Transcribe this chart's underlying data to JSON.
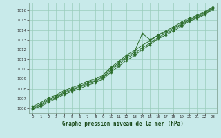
{
  "title": "Graphe pression niveau de la mer (hPa)",
  "bg_color": "#c8eaea",
  "grid_color": "#99ccbb",
  "line_color": "#2d6e2d",
  "marker_color": "#2d6e2d",
  "xlim": [
    -0.5,
    23.5
  ],
  "ylim": [
    1005.5,
    1016.8
  ],
  "yticks": [
    1006,
    1007,
    1008,
    1009,
    1010,
    1011,
    1012,
    1013,
    1014,
    1015,
    1016
  ],
  "xticks": [
    0,
    1,
    2,
    3,
    4,
    5,
    6,
    7,
    8,
    9,
    10,
    11,
    12,
    13,
    14,
    15,
    16,
    17,
    18,
    19,
    20,
    21,
    22,
    23
  ],
  "hours": [
    0,
    1,
    2,
    3,
    4,
    5,
    6,
    7,
    8,
    9,
    10,
    11,
    12,
    13,
    14,
    15,
    16,
    17,
    18,
    19,
    20,
    21,
    22,
    23
  ],
  "line1": [
    1005.9,
    1006.2,
    1006.6,
    1007.0,
    1007.4,
    1007.7,
    1008.0,
    1008.35,
    1008.6,
    1009.0,
    1009.7,
    1010.3,
    1010.9,
    1011.4,
    1012.0,
    1012.5,
    1013.1,
    1013.5,
    1013.9,
    1014.4,
    1014.9,
    1015.2,
    1015.6,
    1016.1
  ],
  "line2": [
    1006.0,
    1006.3,
    1006.75,
    1007.1,
    1007.55,
    1007.85,
    1008.15,
    1008.5,
    1008.75,
    1009.15,
    1009.9,
    1010.5,
    1011.1,
    1011.6,
    1012.2,
    1012.65,
    1013.25,
    1013.65,
    1014.05,
    1014.55,
    1015.0,
    1015.3,
    1015.7,
    1016.2
  ],
  "line3": [
    1006.1,
    1006.4,
    1006.9,
    1007.2,
    1007.65,
    1007.95,
    1008.25,
    1008.6,
    1008.85,
    1009.25,
    1010.05,
    1010.65,
    1011.25,
    1011.75,
    1013.65,
    1013.05,
    1013.45,
    1013.8,
    1014.2,
    1014.65,
    1015.1,
    1015.4,
    1015.8,
    1016.3
  ],
  "line4": [
    1006.2,
    1006.55,
    1007.05,
    1007.35,
    1007.8,
    1008.1,
    1008.4,
    1008.75,
    1009.0,
    1009.4,
    1010.2,
    1010.8,
    1011.45,
    1011.9,
    1012.45,
    1012.9,
    1013.5,
    1013.9,
    1014.35,
    1014.8,
    1015.25,
    1015.5,
    1015.9,
    1016.35
  ]
}
